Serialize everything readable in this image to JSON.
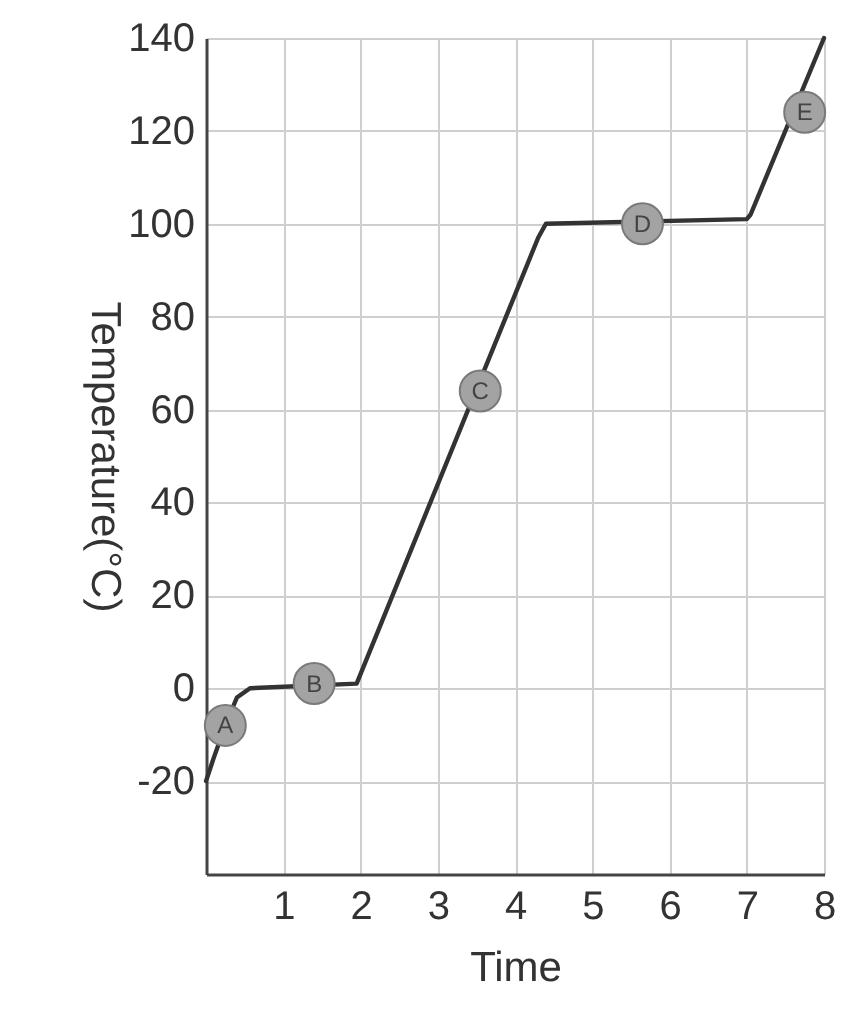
{
  "chart_data": {
    "type": "line",
    "xlabel": "Time",
    "ylabel": "Temperature(°C)",
    "xlim": [
      0,
      8
    ],
    "ylim": [
      -40,
      140
    ],
    "xticks": [
      1,
      2,
      3,
      4,
      5,
      6,
      7,
      8
    ],
    "yticks": [
      {
        "value": -40,
        "label": null
      },
      -20,
      0,
      20,
      40,
      60,
      80,
      100,
      120,
      140
    ],
    "grid": true,
    "series": [
      {
        "color": "#333333",
        "x": [
          0,
          0.1,
          0.25,
          0.4,
          0.57,
          1.95,
          4.3,
          4.4,
          7.0,
          7.05,
          8.0
        ],
        "values": [
          -20,
          -15,
          -8,
          -2,
          0,
          1,
          97,
          100,
          101,
          102,
          140
        ]
      }
    ],
    "annotations": [
      {
        "text": "A",
        "x": 0.25,
        "y": -8
      },
      {
        "text": "B",
        "x": 1.4,
        "y": 1
      },
      {
        "text": "C",
        "x": 3.55,
        "y": 64
      },
      {
        "text": "D",
        "x": 5.65,
        "y": 100
      },
      {
        "text": "E",
        "x": 7.75,
        "y": 124
      }
    ]
  }
}
